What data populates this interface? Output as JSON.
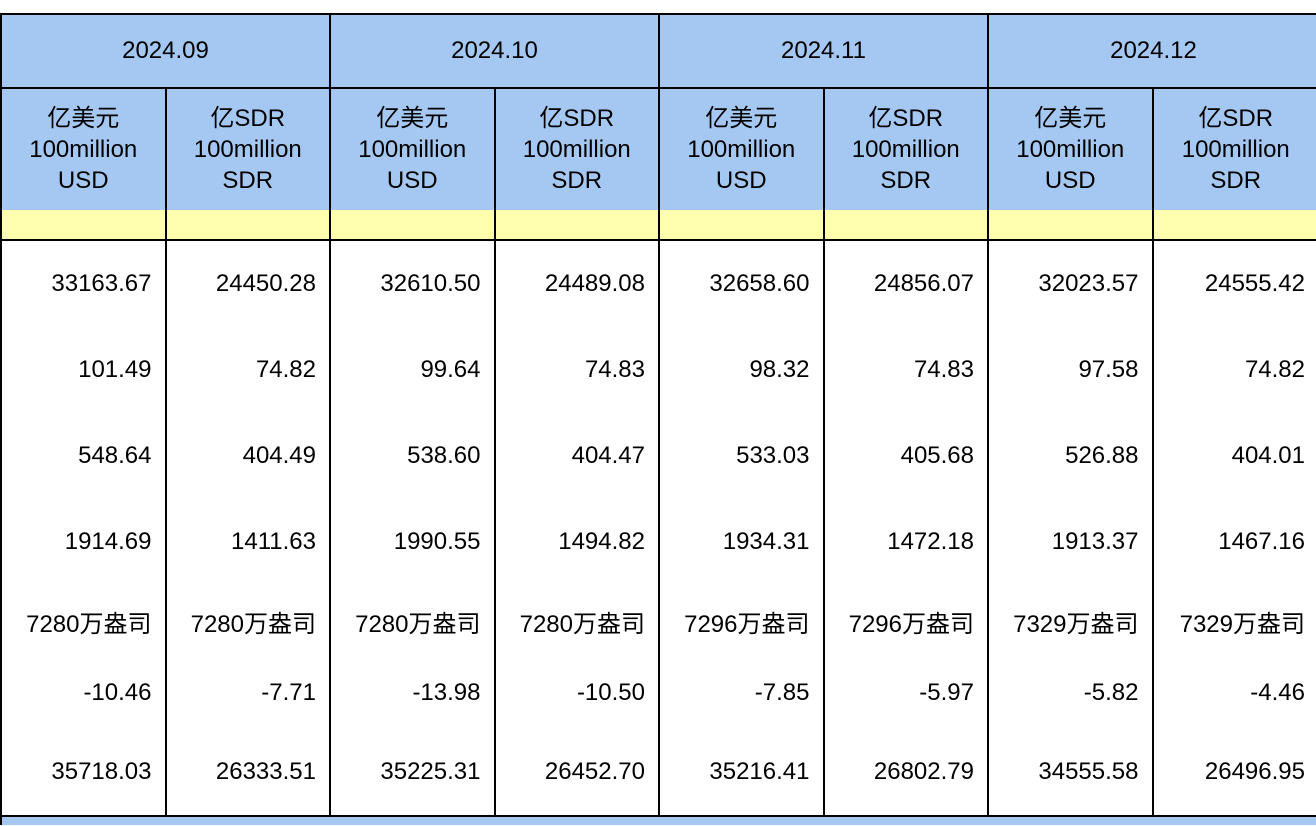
{
  "colors": {
    "header_blue": "#a5c8f2",
    "highlight_yellow": "#ffffad",
    "border_black": "#000000",
    "background_white": "#ffffff"
  },
  "chart_data": {
    "type": "table",
    "column_groups": [
      {
        "label": "2024.09"
      },
      {
        "label": "2024.10"
      },
      {
        "label": "2024.11"
      },
      {
        "label": "2024.12"
      }
    ],
    "unit_subheaders": {
      "usd_lines": [
        "亿美元",
        "100million",
        "USD"
      ],
      "sdr_lines": [
        "亿SDR",
        "100million",
        "SDR"
      ]
    },
    "highlight_row": [
      "",
      "",
      "",
      "",
      "",
      "",
      "",
      ""
    ],
    "rows": [
      [
        "33163.67",
        "24450.28",
        "32610.50",
        "24489.08",
        "32658.60",
        "24856.07",
        "32023.57",
        "24555.42"
      ],
      [
        "101.49",
        "74.82",
        "99.64",
        "74.83",
        "98.32",
        "74.83",
        "97.58",
        "74.82"
      ],
      [
        "548.64",
        "404.49",
        "538.60",
        "404.47",
        "533.03",
        "405.68",
        "526.88",
        "404.01"
      ],
      [
        "1914.69",
        "1411.63",
        "1990.55",
        "1494.82",
        "1934.31",
        "1472.18",
        "1913.37",
        "1467.16"
      ],
      [
        "7280万盎司",
        "7280万盎司",
        "7280万盎司",
        "7280万盎司",
        "7296万盎司",
        "7296万盎司",
        "7329万盎司",
        "7329万盎司"
      ],
      [
        "-10.46",
        "-7.71",
        "-13.98",
        "-10.50",
        "-7.85",
        "-5.97",
        "-5.82",
        "-4.46"
      ],
      [
        "35718.03",
        "26333.51",
        "35225.31",
        "26452.70",
        "35216.41",
        "26802.79",
        "34555.58",
        "26496.95"
      ]
    ],
    "layout": {
      "column_group_count": 4,
      "sub_columns_per_group": 2,
      "horizontal_gridlines_between_data_rows": false
    }
  }
}
